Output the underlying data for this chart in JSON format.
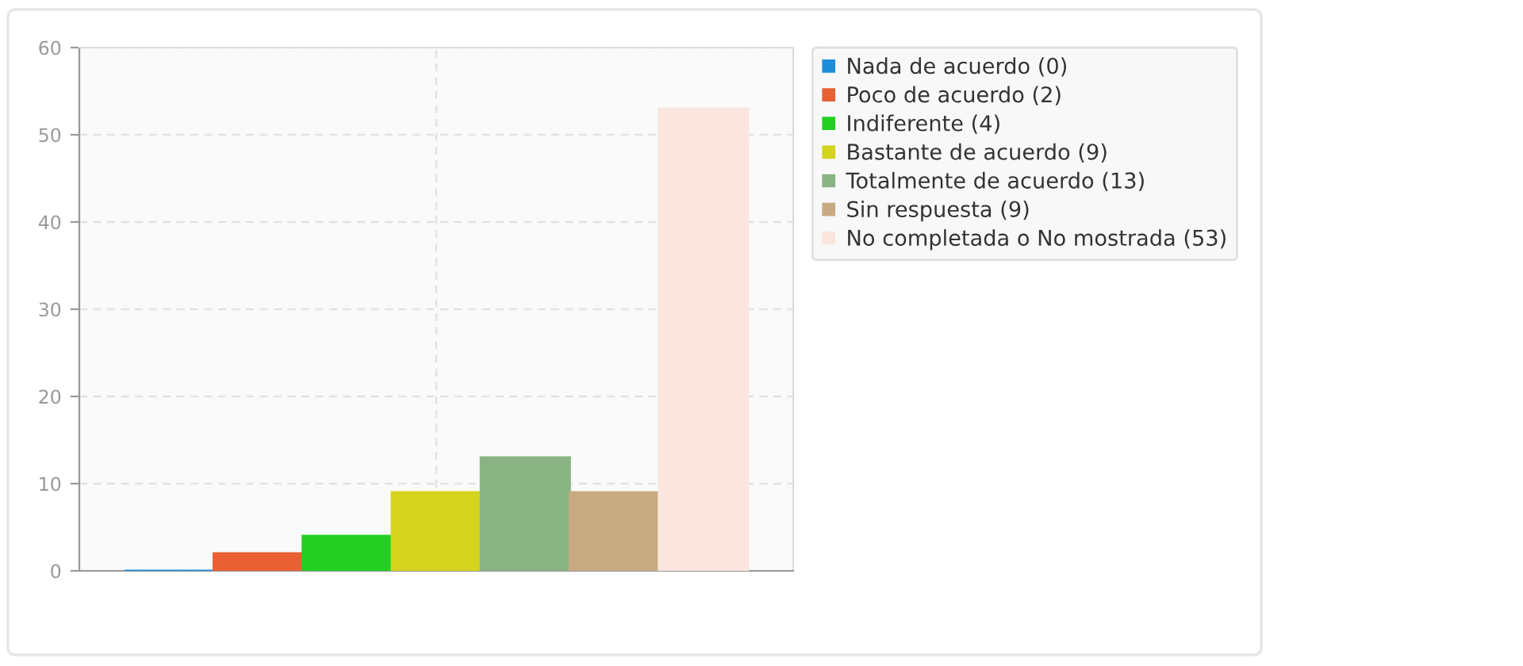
{
  "chart_data": {
    "type": "bar",
    "categories": [
      null
    ],
    "series": [
      {
        "name": "Nada de acuerdo (0)",
        "color": "#1b8ddb",
        "values": [
          0
        ]
      },
      {
        "name": "Poco de acuerdo (2)",
        "color": "#e86034",
        "values": [
          2
        ]
      },
      {
        "name": "Indiferente (4)",
        "color": "#22cf22",
        "values": [
          4
        ]
      },
      {
        "name": "Bastante de acuerdo (9)",
        "color": "#d4d41e",
        "values": [
          9
        ]
      },
      {
        "name": "Totalmente de acuerdo (13)",
        "color": "#89b383",
        "values": [
          13
        ]
      },
      {
        "name": "Sin respuesta (9)",
        "color": "#c8aa82",
        "values": [
          9
        ]
      },
      {
        "name": "No completada o No mostrada (53)",
        "color": "#fae6de",
        "values": [
          53
        ]
      }
    ],
    "ylim": [
      0,
      60
    ],
    "yticks": [
      0,
      10,
      20,
      30,
      40,
      50,
      60
    ],
    "grid": true,
    "legend": "right",
    "tick_labels": "y"
  }
}
